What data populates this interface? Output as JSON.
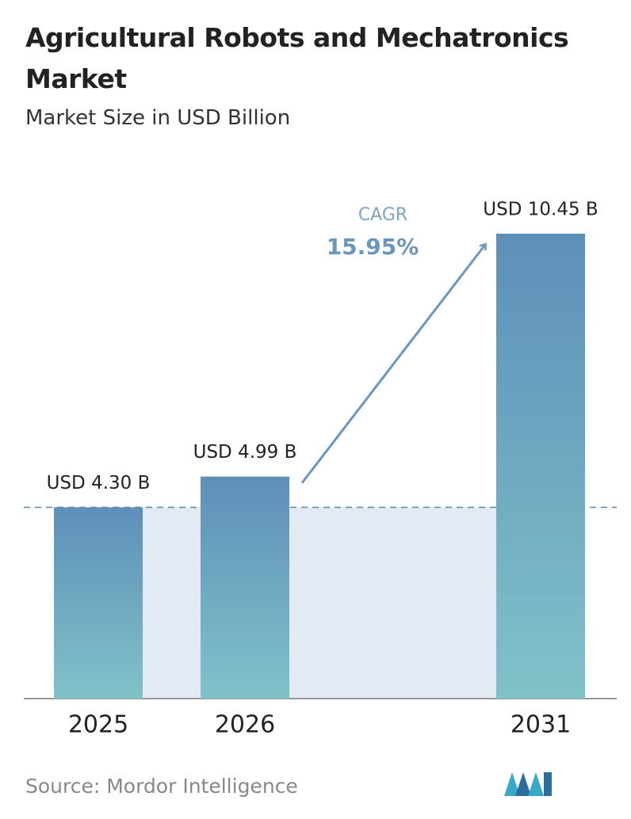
{
  "chart_data": {
    "type": "bar",
    "title": "Agricultural Robots and Mechatronics Market",
    "subtitle": "Market Size in USD Billion",
    "categories": [
      "2025",
      "2026",
      "2031"
    ],
    "values": [
      4.3,
      4.99,
      10.45
    ],
    "value_labels": [
      "USD 4.30 B",
      "USD 4.99 B",
      "USD 10.45 B"
    ],
    "color_top": "#5e8fb9",
    "color_bottom": "#80c2c9",
    "annotation": {
      "label": "CAGR",
      "value": "15.95%"
    },
    "source": "Source:  Mordor Intelligence"
  }
}
